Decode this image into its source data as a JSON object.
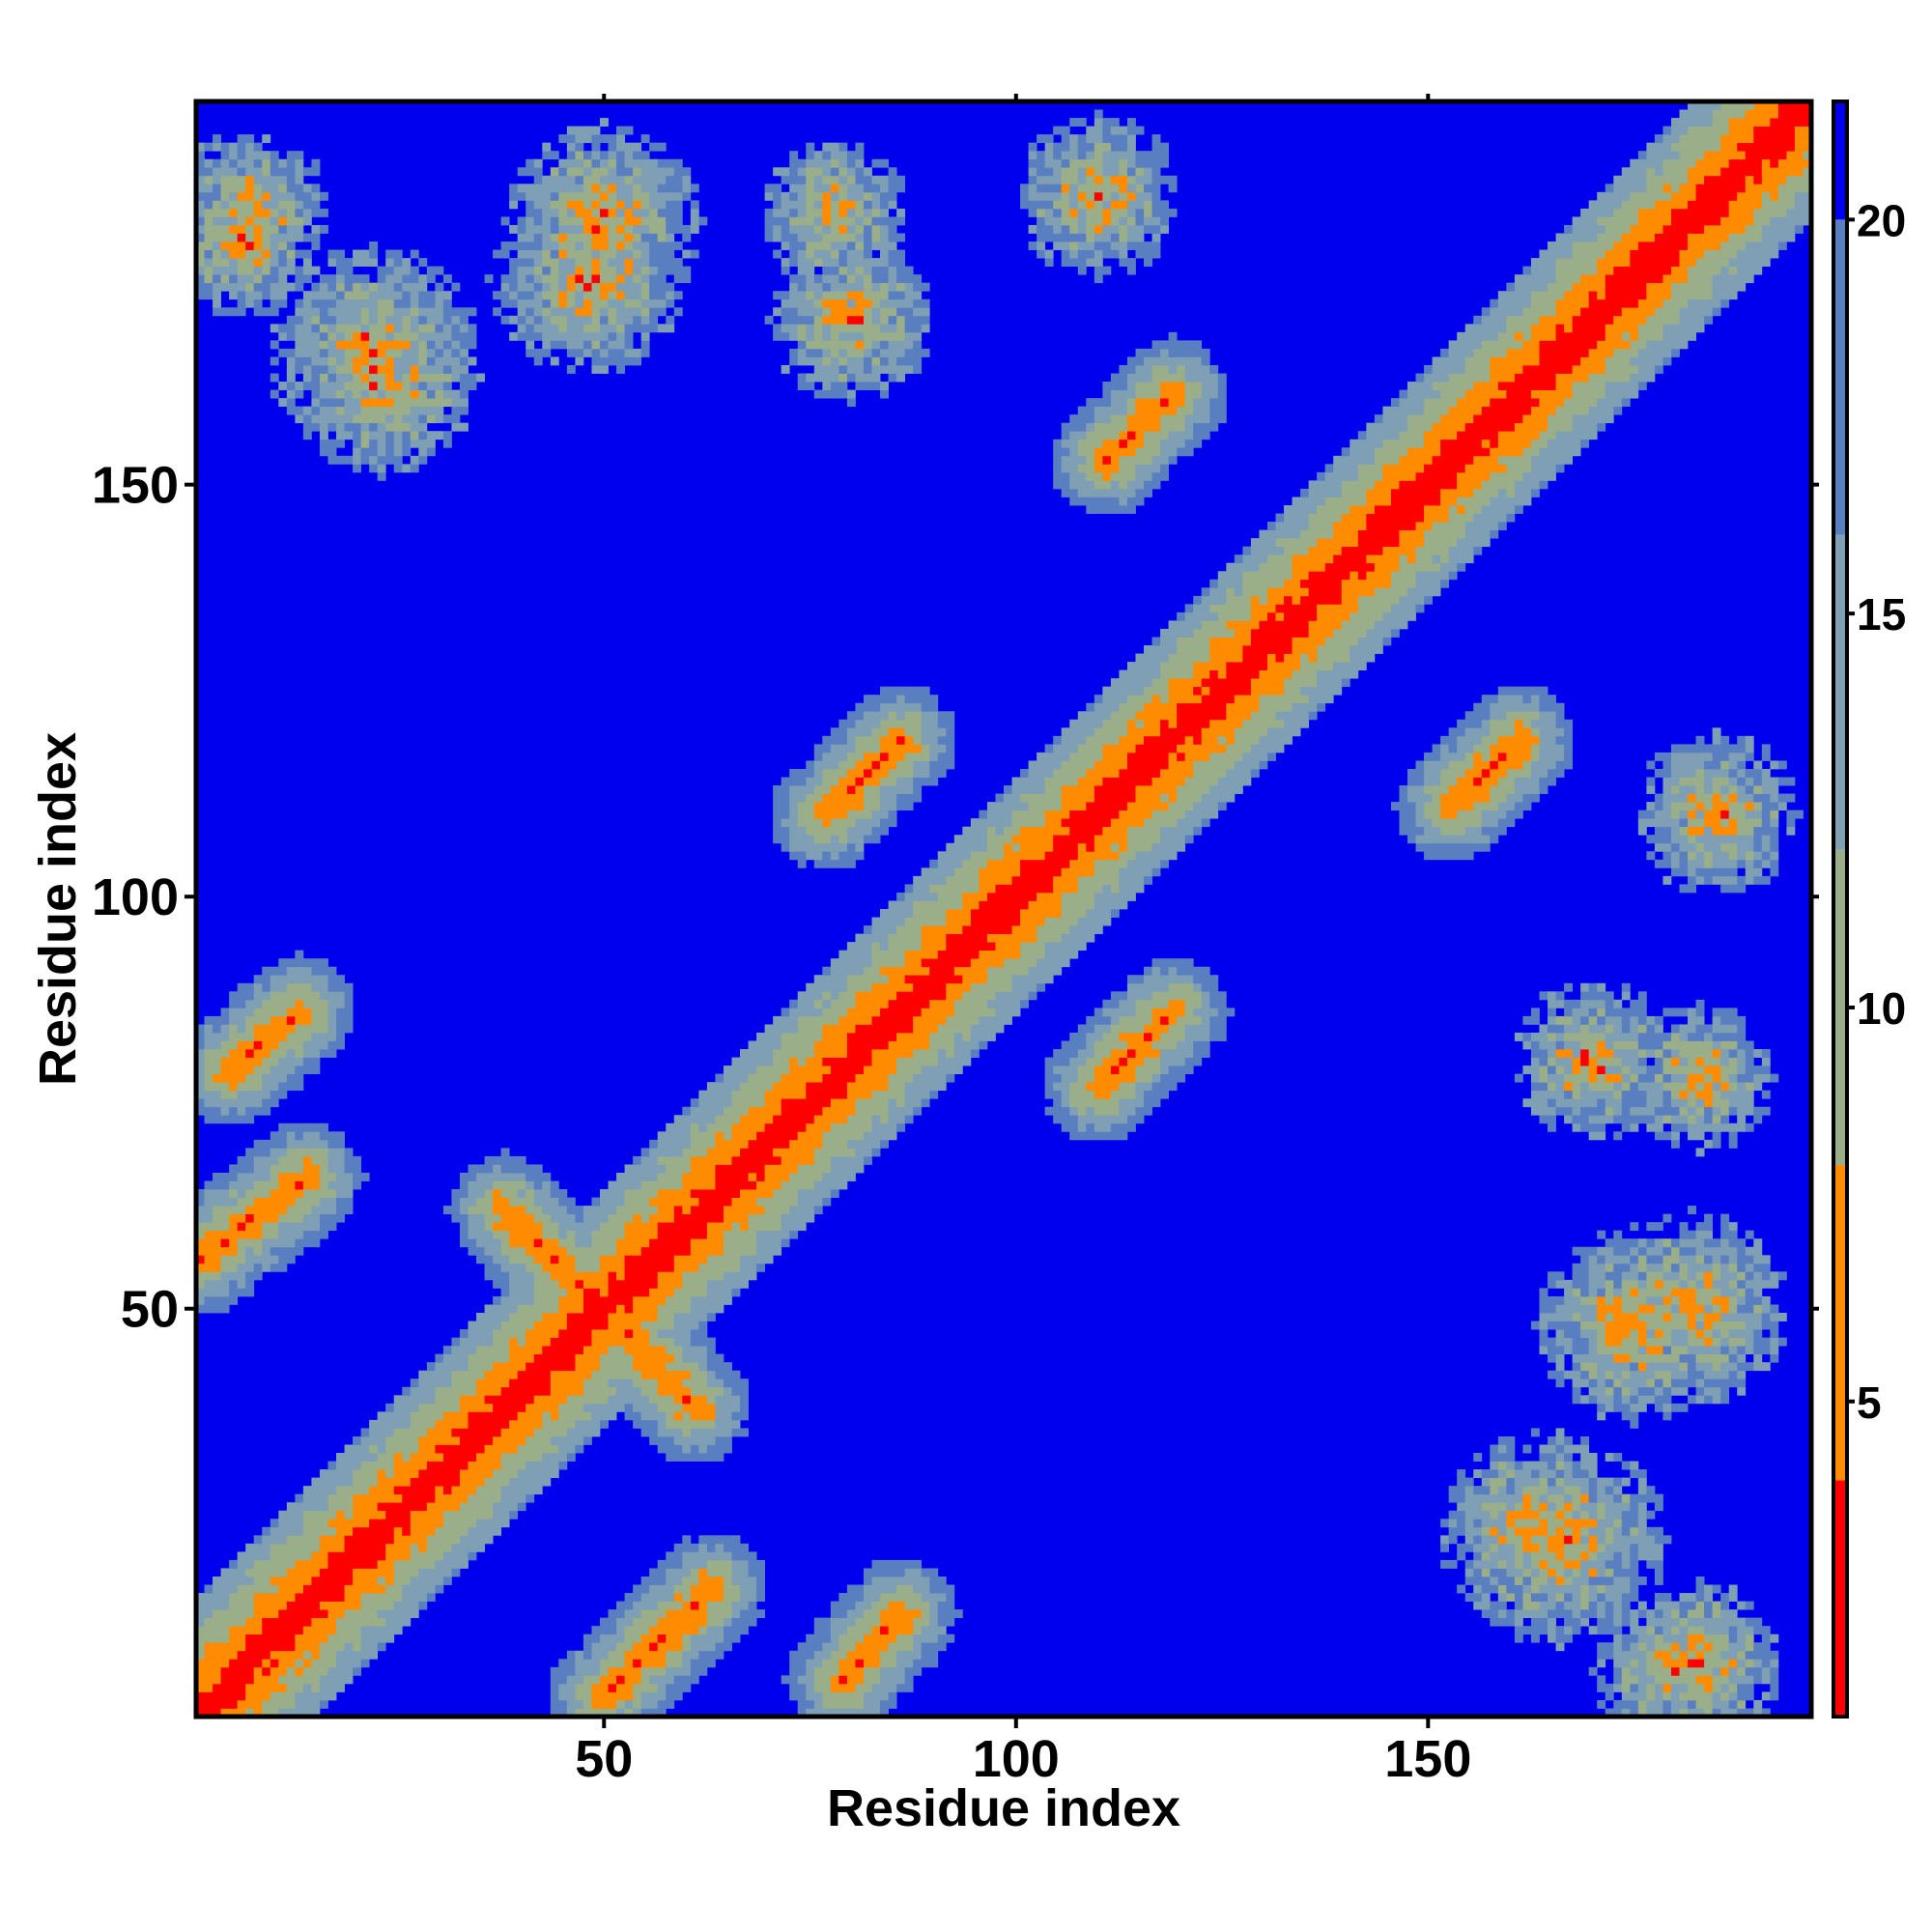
{
  "chart_data": {
    "type": "heatmap",
    "title": "",
    "xlabel": "Residue index",
    "ylabel": "Residue index",
    "n_residues": 196,
    "x_range": [
      1,
      196
    ],
    "y_range": [
      1,
      196
    ],
    "x_ticks": [
      {
        "value": 50,
        "label": "50"
      },
      {
        "value": 100,
        "label": "100"
      },
      {
        "value": 150,
        "label": "150"
      }
    ],
    "y_ticks": [
      {
        "value": 50,
        "label": "50"
      },
      {
        "value": 100,
        "label": "100"
      },
      {
        "value": 150,
        "label": "150"
      }
    ],
    "colorbar": {
      "range": [
        1,
        21.5
      ],
      "ticks": [
        {
          "value": 5,
          "label": "5"
        },
        {
          "value": 10,
          "label": "10"
        },
        {
          "value": 15,
          "label": "15"
        },
        {
          "value": 20,
          "label": "20"
        }
      ],
      "bands": [
        {
          "from": 1,
          "to": 4,
          "color": "#ff0000"
        },
        {
          "from": 4,
          "to": 8,
          "color": "#ff8c00"
        },
        {
          "from": 8,
          "to": 12,
          "color": "#9aae8a"
        },
        {
          "from": 12,
          "to": 16,
          "color": "#7f9fb5"
        },
        {
          "from": 16,
          "to": 20,
          "color": "#5a7fc0"
        },
        {
          "from": 20,
          "to": 21.5,
          "color": "#0000ee"
        }
      ]
    },
    "background_value": 21.5,
    "features": [
      {
        "kind": "diagonal",
        "from": 1,
        "to": 196
      },
      {
        "kind": "parallel",
        "i0": 1,
        "j0": 56,
        "i1": 14,
        "j1": 66
      },
      {
        "kind": "parallel",
        "i0": 50,
        "j0": 3,
        "i1": 63,
        "j1": 16
      },
      {
        "kind": "antiparallel",
        "i0": 38,
        "j0": 62,
        "i1": 61,
        "j1": 38
      },
      {
        "kind": "parallel",
        "i0": 5,
        "j0": 79,
        "i1": 13,
        "j1": 86
      },
      {
        "kind": "parallel",
        "i0": 79,
        "j0": 5,
        "i1": 86,
        "j1": 13
      },
      {
        "kind": "parallel",
        "i0": 77,
        "j0": 110,
        "i1": 86,
        "j1": 119
      },
      {
        "kind": "parallel",
        "i0": 110,
        "j0": 77,
        "i1": 119,
        "j1": 86
      },
      {
        "kind": "parallel",
        "i0": 111,
        "j0": 153,
        "i1": 119,
        "j1": 161
      },
      {
        "kind": "parallel",
        "i0": 153,
        "j0": 111,
        "i1": 161,
        "j1": 119
      },
      {
        "kind": "cluster",
        "ci": 22,
        "cj": 166,
        "r": 9
      },
      {
        "kind": "cluster",
        "ci": 166,
        "cj": 22,
        "r": 9
      },
      {
        "kind": "cluster",
        "ci": 175,
        "cj": 48,
        "r": 8
      },
      {
        "kind": "cluster",
        "ci": 48,
        "cj": 175,
        "r": 8
      },
      {
        "kind": "cluster",
        "ci": 163,
        "cj": 23,
        "r": 8
      },
      {
        "kind": "cluster",
        "ci": 23,
        "cj": 163,
        "r": 8
      },
      {
        "kind": "cluster",
        "ci": 50,
        "cj": 182,
        "r": 8
      },
      {
        "kind": "cluster",
        "ci": 182,
        "cj": 50,
        "r": 8
      },
      {
        "kind": "cluster",
        "ci": 110,
        "cj": 185,
        "r": 6
      },
      {
        "kind": "cluster",
        "ci": 185,
        "cj": 110,
        "r": 6
      },
      {
        "kind": "cluster",
        "ci": 170,
        "cj": 80,
        "r": 6
      },
      {
        "kind": "cluster",
        "ci": 80,
        "cj": 170,
        "r": 6
      },
      {
        "kind": "cluster",
        "ci": 7,
        "cj": 183,
        "r": 6
      },
      {
        "kind": "cluster",
        "ci": 183,
        "cj": 7,
        "r": 6
      },
      {
        "kind": "cluster",
        "ci": 180,
        "cj": 6,
        "r": 6
      },
      {
        "kind": "cluster",
        "ci": 6,
        "cj": 180,
        "r": 6
      },
      {
        "kind": "cluster",
        "ci": 78,
        "cj": 183,
        "r": 5
      },
      {
        "kind": "cluster",
        "ci": 183,
        "cj": 78,
        "r": 5
      }
    ]
  }
}
